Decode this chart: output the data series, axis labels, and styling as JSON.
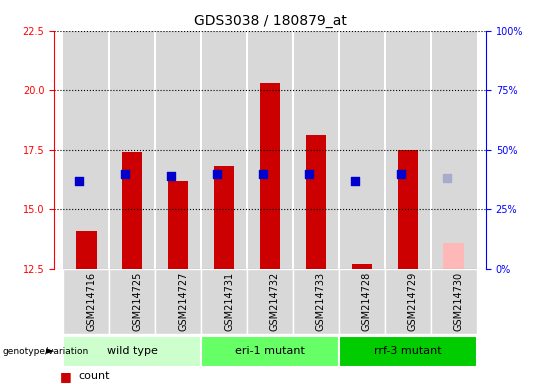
{
  "title": "GDS3038 / 180879_at",
  "samples": [
    "GSM214716",
    "GSM214725",
    "GSM214727",
    "GSM214731",
    "GSM214732",
    "GSM214733",
    "GSM214728",
    "GSM214729",
    "GSM214730"
  ],
  "count_values": [
    14.1,
    17.4,
    16.2,
    16.8,
    20.3,
    18.1,
    12.7,
    17.5,
    null
  ],
  "rank_values": [
    16.2,
    16.5,
    16.4,
    16.5,
    16.5,
    16.5,
    16.2,
    16.5,
    null
  ],
  "absent_count_values": [
    null,
    null,
    null,
    null,
    null,
    null,
    null,
    null,
    13.6
  ],
  "absent_rank_values": [
    null,
    null,
    null,
    null,
    null,
    null,
    null,
    null,
    16.3
  ],
  "ylim_left": [
    12.5,
    22.5
  ],
  "ylim_right": [
    0,
    100
  ],
  "yticks_left": [
    12.5,
    15.0,
    17.5,
    20.0,
    22.5
  ],
  "yticks_right": [
    0,
    25,
    50,
    75,
    100
  ],
  "ytick_labels_right": [
    "0%",
    "25%",
    "50%",
    "75%",
    "100%"
  ],
  "groups": [
    {
      "label": "wild type",
      "indices": [
        0,
        1,
        2
      ],
      "color": "#ccffcc"
    },
    {
      "label": "eri-1 mutant",
      "indices": [
        3,
        4,
        5
      ],
      "color": "#66ff66"
    },
    {
      "label": "rrf-3 mutant",
      "indices": [
        6,
        7,
        8
      ],
      "color": "#00cc00"
    }
  ],
  "bar_color_red": "#cc0000",
  "bar_color_absent": "#ffb8b8",
  "dot_color_blue": "#0000cc",
  "dot_color_absent": "#aaaacc",
  "bar_width": 0.45,
  "dot_size": 40,
  "background_col": "#d8d8d8",
  "grid_color": "#000000",
  "title_fontsize": 10,
  "tick_fontsize": 7,
  "sample_fontsize": 7,
  "legend_fontsize": 8,
  "group_label_fontsize": 8
}
